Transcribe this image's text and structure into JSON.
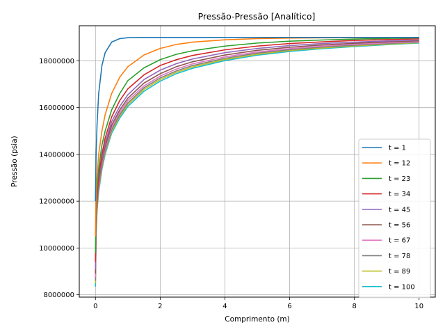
{
  "chart_data": {
    "type": "line",
    "title": "Pressão-Pressão [Analítico]",
    "xlabel": "Comprimento (m)",
    "ylabel": "Pressão (psia)",
    "xlim": [
      -0.5,
      10.5
    ],
    "ylim": [
      7900000,
      19500000
    ],
    "xticks": [
      0,
      2,
      4,
      6,
      8,
      10
    ],
    "xtick_labels": [
      "0",
      "2",
      "4",
      "6",
      "8",
      "10"
    ],
    "yticks": [
      8000000,
      10000000,
      12000000,
      14000000,
      16000000,
      18000000
    ],
    "ytick_labels": [
      "8000000",
      "10000000",
      "12000000",
      "14000000",
      "16000000",
      "18000000"
    ],
    "grid": true,
    "legend_position": "lower-right",
    "x": [
      0,
      0.02,
      0.05,
      0.1,
      0.2,
      0.3,
      0.5,
      0.75,
      1,
      1.5,
      2,
      2.5,
      3,
      4,
      5,
      6,
      7,
      8,
      9,
      10
    ],
    "series": [
      {
        "name": "t = 1",
        "color": "#1f77b4",
        "values": [
          12000000,
          14000000,
          15300000,
          16600000,
          17800000,
          18350000,
          18800000,
          18950000,
          18990000,
          19000000,
          19000000,
          19000000,
          19000000,
          19000000,
          19000000,
          19000000,
          19000000,
          19000000,
          19000000,
          19000000
        ]
      },
      {
        "name": "t = 12",
        "color": "#ff7f0e",
        "values": [
          10500000,
          12200000,
          13100000,
          14000000,
          15000000,
          15700000,
          16600000,
          17300000,
          17750000,
          18250000,
          18530000,
          18700000,
          18800000,
          18900000,
          18950000,
          18975000,
          18985000,
          18990000,
          18995000,
          19000000
        ]
      },
      {
        "name": "t = 23",
        "color": "#2ca02c",
        "values": [
          9800000,
          11700000,
          12600000,
          13400000,
          14400000,
          15000000,
          15900000,
          16600000,
          17150000,
          17700000,
          18050000,
          18280000,
          18430000,
          18630000,
          18760000,
          18840000,
          18890000,
          18930000,
          18960000,
          18980000
        ]
      },
      {
        "name": "t = 34",
        "color": "#d62728",
        "values": [
          9400000,
          11400000,
          12300000,
          13100000,
          14000000,
          14700000,
          15600000,
          16300000,
          16800000,
          17400000,
          17800000,
          18050000,
          18230000,
          18470000,
          18630000,
          18740000,
          18810000,
          18870000,
          18910000,
          18940000
        ]
      },
      {
        "name": "t = 45",
        "color": "#9467bd",
        "values": [
          9100000,
          11200000,
          12100000,
          12900000,
          13800000,
          14500000,
          15400000,
          16050000,
          16550000,
          17200000,
          17600000,
          17880000,
          18080000,
          18350000,
          18530000,
          18650000,
          18740000,
          18800000,
          18850000,
          18890000
        ]
      },
      {
        "name": "t = 56",
        "color": "#8c564b",
        "values": [
          8900000,
          11000000,
          12000000,
          12800000,
          13700000,
          14350000,
          15250000,
          15900000,
          16400000,
          17050000,
          17450000,
          17750000,
          17960000,
          18250000,
          18450000,
          18580000,
          18680000,
          18750000,
          18810000,
          18860000
        ]
      },
      {
        "name": "t = 67",
        "color": "#e377c2",
        "values": [
          8750000,
          10900000,
          11900000,
          12700000,
          13600000,
          14250000,
          15150000,
          15800000,
          16300000,
          16930000,
          17350000,
          17650000,
          17870000,
          18170000,
          18380000,
          18520000,
          18630000,
          18710000,
          18770000,
          18820000
        ]
      },
      {
        "name": "t = 78",
        "color": "#7f7f7f",
        "values": [
          8600000,
          10800000,
          11800000,
          12600000,
          13500000,
          14150000,
          15050000,
          15700000,
          16200000,
          16850000,
          17270000,
          17570000,
          17800000,
          18110000,
          18330000,
          18480000,
          18590000,
          18670000,
          18740000,
          18800000
        ]
      },
      {
        "name": "t = 89",
        "color": "#bcbd22",
        "values": [
          8500000,
          10700000,
          11700000,
          12500000,
          13420000,
          14080000,
          14980000,
          15630000,
          16130000,
          16780000,
          17200000,
          17510000,
          17740000,
          18060000,
          18280000,
          18440000,
          18550000,
          18640000,
          18710000,
          18780000
        ]
      },
      {
        "name": "t = 100",
        "color": "#17becf",
        "values": [
          8350000,
          10600000,
          11600000,
          12400000,
          13350000,
          14000000,
          14900000,
          15550000,
          16050000,
          16700000,
          17130000,
          17450000,
          17680000,
          18010000,
          18240000,
          18400000,
          18520000,
          18610000,
          18690000,
          18760000
        ]
      }
    ]
  }
}
